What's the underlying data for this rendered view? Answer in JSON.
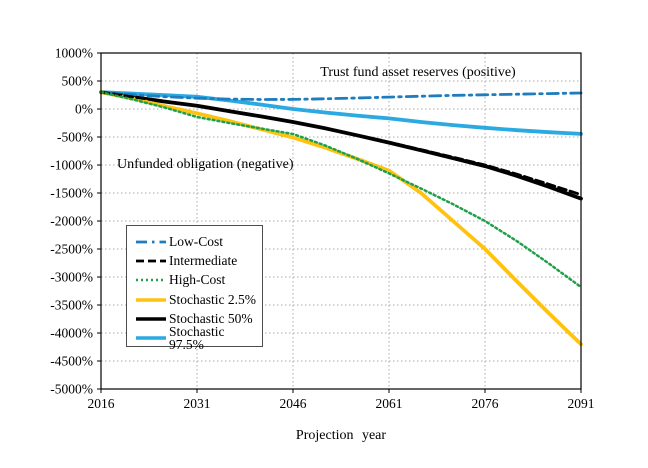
{
  "annotations": {
    "positive_region": "Trust fund asset reserves (positive)",
    "negative_region": "Unfunded obligation (negative)"
  },
  "chart_data": {
    "type": "line",
    "xlabel": "Projection year",
    "ylabel": "",
    "xlim": [
      2016,
      2091
    ],
    "ylim": [
      -5000,
      1000
    ],
    "grid": "dotted",
    "legend_position": "inside-left",
    "x_ticks": [
      {
        "value": 2016,
        "label": "2016"
      },
      {
        "value": 2031,
        "label": "2031"
      },
      {
        "value": 2046,
        "label": "2046"
      },
      {
        "value": 2061,
        "label": "2061"
      },
      {
        "value": 2076,
        "label": "2076"
      },
      {
        "value": 2091,
        "label": "2091"
      }
    ],
    "y_ticks": [
      {
        "value": 1000,
        "label": "1000%"
      },
      {
        "value": 500,
        "label": "500%"
      },
      {
        "value": 0,
        "label": "0%"
      },
      {
        "value": -500,
        "label": "-500%"
      },
      {
        "value": -1000,
        "label": "-1000%"
      },
      {
        "value": -1500,
        "label": "-1500%"
      },
      {
        "value": -2000,
        "label": "-2000%"
      },
      {
        "value": -2500,
        "label": "-2500%"
      },
      {
        "value": -3000,
        "label": "-3000%"
      },
      {
        "value": -3500,
        "label": "-3500%"
      },
      {
        "value": -4000,
        "label": "-4000%"
      },
      {
        "value": -4500,
        "label": "-4500%"
      },
      {
        "value": -5000,
        "label": "-5000%"
      }
    ],
    "x": [
      2016,
      2021,
      2026,
      2031,
      2036,
      2041,
      2046,
      2051,
      2056,
      2061,
      2066,
      2071,
      2076,
      2081,
      2086,
      2091
    ],
    "series": [
      {
        "name": "Low-Cost",
        "color": "#1F7DBF",
        "style": "dashdot",
        "width": 2.8,
        "values": [
          300,
          255,
          220,
          192,
          176,
          170,
          172,
          182,
          196,
          212,
          228,
          242,
          253,
          264,
          275,
          286
        ]
      },
      {
        "name": "Intermediate",
        "color": "#000000",
        "style": "dashed",
        "width": 2.8,
        "values": [
          300,
          215,
          132,
          57,
          -38,
          -132,
          -232,
          -345,
          -468,
          -595,
          -725,
          -860,
          -1000,
          -1165,
          -1345,
          -1530
        ]
      },
      {
        "name": "High-Cost",
        "color": "#21A04B",
        "style": "dotted",
        "width": 2.5,
        "values": [
          300,
          170,
          25,
          -143,
          -250,
          -348,
          -446,
          -650,
          -890,
          -1150,
          -1420,
          -1700,
          -2000,
          -2360,
          -2760,
          -3180
        ]
      },
      {
        "name": "Stochastic 2.5%",
        "color": "#FFC20E",
        "style": "solid",
        "width": 3.8,
        "values": [
          300,
          185,
          50,
          -77,
          -215,
          -360,
          -509,
          -690,
          -890,
          -1100,
          -1500,
          -2000,
          -2500,
          -3080,
          -3650,
          -4200
        ]
      },
      {
        "name": "Stochastic 50%",
        "color": "#000000",
        "style": "solid",
        "width": 3.8,
        "values": [
          300,
          215,
          132,
          57,
          -38,
          -132,
          -232,
          -345,
          -470,
          -600,
          -738,
          -878,
          -1020,
          -1195,
          -1390,
          -1600
        ]
      },
      {
        "name": "Stochastic 97.5%",
        "color": "#2BA9E1",
        "style": "solid",
        "width": 3.8,
        "values": [
          300,
          275,
          248,
          218,
          152,
          78,
          0,
          -62,
          -118,
          -168,
          -232,
          -288,
          -335,
          -378,
          -414,
          -445
        ]
      }
    ]
  }
}
